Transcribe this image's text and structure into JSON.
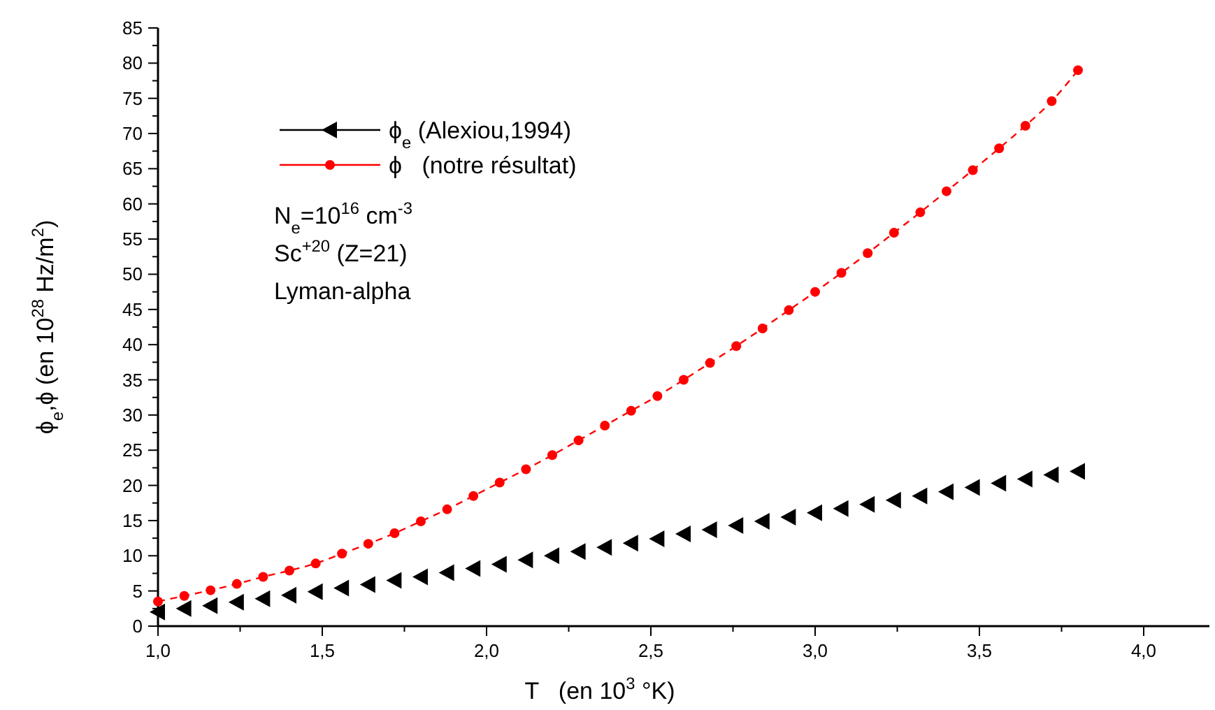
{
  "chart_data": {
    "type": "line",
    "xlabel": "T   (en 10$^{3}$ °K)",
    "ylabel": "ϕ$_{e}$,ϕ (en 10$^{28}$ Hz/m$^{2}$)",
    "annotations": [
      "N$_{e}$=10$^{16}$ cm$^{-3}$",
      "Sc$^{+20}$ (Z=21)",
      "Lyman-alpha"
    ],
    "x": [
      1.0,
      1.08,
      1.16,
      1.24,
      1.32,
      1.4,
      1.48,
      1.56,
      1.64,
      1.72,
      1.8,
      1.88,
      1.96,
      2.04,
      2.12,
      2.2,
      2.28,
      2.36,
      2.44,
      2.52,
      2.6,
      2.68,
      2.76,
      2.84,
      2.92,
      3.0,
      3.08,
      3.16,
      3.24,
      3.32,
      3.4,
      3.48,
      3.56,
      3.64,
      3.72,
      3.8
    ],
    "series": [
      {
        "name": "ϕ$_{e}$ (Alexiou,1994)",
        "type": "scatter",
        "marker": "triangle",
        "color": "#000000",
        "values": [
          2.0,
          2.5,
          2.9,
          3.4,
          3.9,
          4.4,
          4.9,
          5.4,
          5.9,
          6.5,
          7.0,
          7.6,
          8.2,
          8.8,
          9.4,
          10.0,
          10.6,
          11.2,
          11.8,
          12.4,
          13.1,
          13.7,
          14.3,
          14.9,
          15.5,
          16.1,
          16.7,
          17.3,
          17.9,
          18.5,
          19.1,
          19.7,
          20.3,
          20.9,
          21.5,
          22.0
        ]
      },
      {
        "name": "ϕ   (notre résultat)",
        "marker": "circle",
        "line_style": "dashed",
        "color": "#ff0000",
        "values": [
          3.5,
          4.3,
          5.1,
          6.0,
          7.0,
          7.9,
          8.9,
          10.3,
          11.7,
          13.2,
          14.9,
          16.6,
          18.5,
          20.4,
          22.3,
          24.3,
          26.4,
          28.5,
          30.6,
          32.7,
          35.0,
          37.4,
          39.8,
          42.3,
          44.9,
          47.5,
          50.2,
          53.0,
          55.9,
          58.8,
          61.8,
          64.8,
          67.9,
          71.1,
          74.6,
          79.0
        ]
      }
    ],
    "xlim": [
      1.0,
      4.2
    ],
    "xticks": [
      {
        "value": 1.0,
        "label": "1,0"
      },
      {
        "value": 1.25,
        "label": null
      },
      {
        "value": 1.5,
        "label": "1,5"
      },
      {
        "value": 1.75,
        "label": null
      },
      {
        "value": 2.0,
        "label": "2,0"
      },
      {
        "value": 2.25,
        "label": null
      },
      {
        "value": 2.5,
        "label": "2,5"
      },
      {
        "value": 2.75,
        "label": null
      },
      {
        "value": 3.0,
        "label": "3,0"
      },
      {
        "value": 3.25,
        "label": null
      },
      {
        "value": 3.5,
        "label": "3,5"
      },
      {
        "value": 3.75,
        "label": null
      },
      {
        "value": 4.0,
        "label": "4,0"
      }
    ],
    "ylim": [
      0,
      85
    ],
    "yticks": [
      0,
      {
        "value": 2.5,
        "label": null
      },
      5,
      {
        "value": 7.5,
        "label": null
      },
      10,
      {
        "value": 12.5,
        "label": null
      },
      15,
      {
        "value": 17.5,
        "label": null
      },
      20,
      {
        "value": 22.5,
        "label": null
      },
      25,
      {
        "value": 27.5,
        "label": null
      },
      30,
      {
        "value": 32.5,
        "label": null
      },
      35,
      {
        "value": 37.5,
        "label": null
      },
      40,
      {
        "value": 42.5,
        "label": null
      },
      45,
      {
        "value": 47.5,
        "label": null
      },
      50,
      {
        "value": 52.5,
        "label": null
      },
      55,
      {
        "value": 57.5,
        "label": null
      },
      60,
      {
        "value": 62.5,
        "label": null
      },
      65,
      {
        "value": 67.5,
        "label": null
      },
      70,
      {
        "value": 72.5,
        "label": null
      },
      75,
      {
        "value": 77.5,
        "label": null
      },
      80,
      {
        "value": 82.5,
        "label": null
      },
      85
    ],
    "grid": false,
    "legend": "top left"
  }
}
